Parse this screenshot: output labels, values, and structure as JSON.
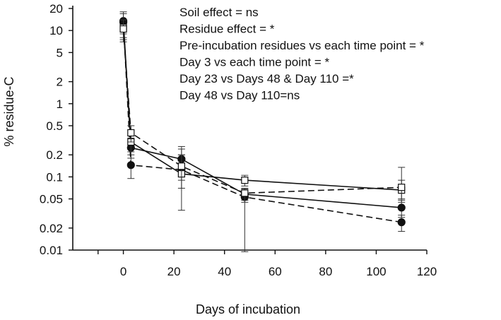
{
  "chart_data": {
    "type": "line",
    "xlabel": "Days of incubation",
    "ylabel": "% residue-C",
    "xlim": [
      -20,
      120
    ],
    "ylim": [
      0.01,
      20
    ],
    "yscale": "log",
    "grid": false,
    "x_ticks": [
      0,
      20,
      40,
      60,
      80,
      100,
      120
    ],
    "x_tick_labels": [
      "0",
      "20",
      "40",
      "60",
      "80",
      "100",
      "120"
    ],
    "y_ticks": [
      0.01,
      0.02,
      0.05,
      0.1,
      0.2,
      0.5,
      1,
      2,
      5,
      10,
      20
    ],
    "y_tick_labels": [
      "0.01",
      "0.02",
      "0.05",
      "0.1",
      "0.2",
      "0.5",
      "1",
      "2",
      "5",
      "10",
      "20"
    ],
    "annotations": [
      "Soil effect = ns",
      "Residue effect = *",
      "Pre-incubation residues vs each time point = *",
      "Day 3 vs each time point  = *",
      "Day 23 vs Days 48 & Day 110 =*",
      "Day 48 vs Day 110=ns"
    ],
    "series": [
      {
        "marker": "circle",
        "fill": "#111111",
        "line": "solid",
        "x": [
          0,
          3,
          23,
          48,
          110
        ],
        "y": [
          13.5,
          0.25,
          0.175,
          0.058,
          0.038
        ],
        "err_low": [
          7.5,
          0.18,
          0.12,
          0.048,
          0.028
        ],
        "err_high": [
          18.0,
          0.34,
          0.26,
          0.068,
          0.048
        ]
      },
      {
        "marker": "circle",
        "fill": "#111111",
        "line": "dashed",
        "x": [
          0,
          3,
          23,
          48,
          110
        ],
        "y": [
          13.0,
          0.145,
          0.125,
          0.053,
          0.024
        ],
        "err_low": [
          9.0,
          0.095,
          0.07,
          0.045,
          0.018
        ],
        "err_high": [
          17.0,
          0.2,
          0.2,
          0.062,
          0.03
        ]
      },
      {
        "marker": "square",
        "fill": "#ffffff",
        "line": "solid",
        "x": [
          0,
          3,
          23,
          48,
          110
        ],
        "y": [
          11.0,
          0.3,
          0.11,
          0.09,
          0.066
        ],
        "err_low": [
          8.0,
          0.22,
          0.035,
          0.075,
          0.045
        ],
        "err_high": [
          14.0,
          0.38,
          0.24,
          0.105,
          0.09
        ]
      },
      {
        "marker": "square",
        "fill": "#ffffff",
        "line": "dashed",
        "x": [
          0,
          3,
          23,
          48,
          110
        ],
        "y": [
          10.5,
          0.4,
          0.14,
          0.06,
          0.072
        ],
        "err_low": [
          7.0,
          0.3,
          0.09,
          0.0095,
          0.05
        ],
        "err_high": [
          14.0,
          0.5,
          0.2,
          0.07,
          0.135
        ]
      }
    ]
  }
}
